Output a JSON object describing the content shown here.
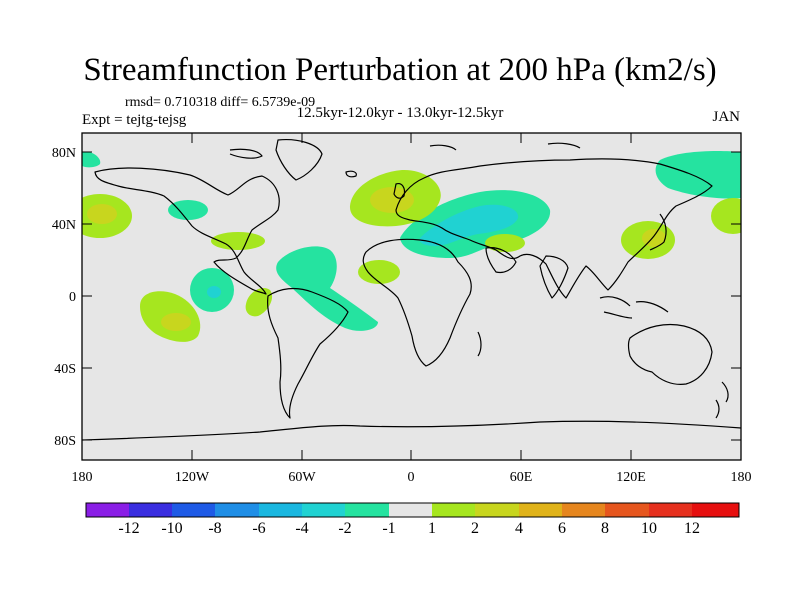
{
  "title": "Streamfunction Perturbation at 200 hPa (km2/s)",
  "stats_text": "rmsd= 0.710318 diff= 6.5739e-09",
  "experiment_text": "Expt = tejtg-tejsg",
  "period_text": "12.5kyr-12.0kyr - 13.0kyr-12.5kyr",
  "month_text": "JAN",
  "lat_labels": [
    "80N",
    "40N",
    "0",
    "40S",
    "80S"
  ],
  "lon_labels": [
    "180",
    "120W",
    "60W",
    "0",
    "60E",
    "120E",
    "180"
  ],
  "colorbar": {
    "labels": [
      "-12",
      "-10",
      "-8",
      "-6",
      "-4",
      "-2",
      "-1",
      "1",
      "2",
      "4",
      "6",
      "8",
      "10",
      "12"
    ],
    "colors": [
      "#8a1ee6",
      "#3a2ee0",
      "#1e5ae6",
      "#1f8ee6",
      "#1ab7e0",
      "#20d2d2",
      "#25e3a0",
      "#e6e6e6",
      "#a6e61f",
      "#c8d61e",
      "#e0b31a",
      "#e6861e",
      "#e6561e",
      "#e6301e",
      "#e60f0f"
    ]
  }
}
